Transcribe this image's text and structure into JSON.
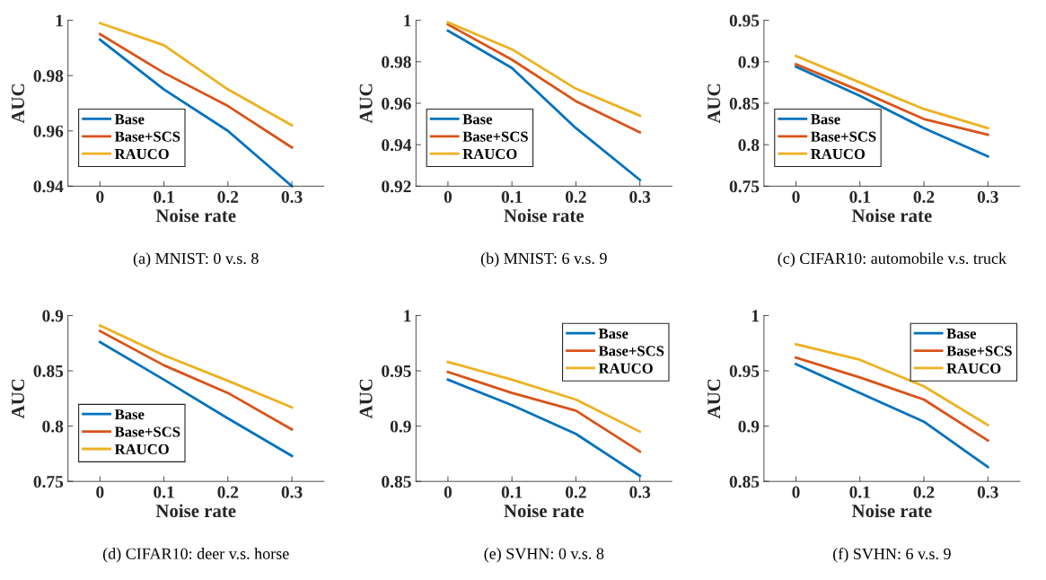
{
  "chart_data": [
    {
      "type": "line",
      "title": "(a) MNIST: 0 v.s. 8",
      "xlabel": "Noise rate",
      "ylabel": "AUC",
      "x": [
        0,
        0.1,
        0.2,
        0.3
      ],
      "xlim": [
        -0.05,
        0.35
      ],
      "xticks": [
        0,
        0.1,
        0.2,
        0.3
      ],
      "ylim": [
        0.94,
        1
      ],
      "yticks": [
        0.94,
        0.96,
        0.98,
        1
      ],
      "legend": "bottom left",
      "grid": false,
      "series": [
        {
          "name": "Base",
          "color": "#0072bd",
          "values": [
            0.993,
            0.975,
            0.96,
            0.94
          ]
        },
        {
          "name": "Base+SCS",
          "color": "#d95319",
          "values": [
            0.995,
            0.981,
            0.969,
            0.954
          ]
        },
        {
          "name": "RAUCO",
          "color": "#edb120",
          "values": [
            0.999,
            0.991,
            0.975,
            0.962
          ]
        }
      ]
    },
    {
      "type": "line",
      "title": "(b) MNIST: 6 v.s. 9",
      "xlabel": "Noise rate",
      "ylabel": "AUC",
      "x": [
        0,
        0.1,
        0.2,
        0.3
      ],
      "xlim": [
        -0.05,
        0.35
      ],
      "xticks": [
        0,
        0.1,
        0.2,
        0.3
      ],
      "ylim": [
        0.92,
        1
      ],
      "yticks": [
        0.92,
        0.94,
        0.96,
        0.98,
        1
      ],
      "legend": "bottom left",
      "grid": false,
      "series": [
        {
          "name": "Base",
          "color": "#0072bd",
          "values": [
            0.995,
            0.977,
            0.948,
            0.923
          ]
        },
        {
          "name": "Base+SCS",
          "color": "#d95319",
          "values": [
            0.998,
            0.981,
            0.961,
            0.946
          ]
        },
        {
          "name": "RAUCO",
          "color": "#edb120",
          "values": [
            0.999,
            0.986,
            0.967,
            0.954
          ]
        }
      ]
    },
    {
      "type": "line",
      "title": "(c) CIFAR10: automobile v.s. truck",
      "xlabel": "Noise rate",
      "ylabel": "AUC",
      "x": [
        0,
        0.1,
        0.2,
        0.3
      ],
      "xlim": [
        -0.05,
        0.35
      ],
      "xticks": [
        0,
        0.1,
        0.2,
        0.3
      ],
      "ylim": [
        0.75,
        0.95
      ],
      "yticks": [
        0.75,
        0.8,
        0.85,
        0.9,
        0.95
      ],
      "legend": "bottom left",
      "grid": false,
      "series": [
        {
          "name": "Base",
          "color": "#0072bd",
          "values": [
            0.894,
            0.859,
            0.82,
            0.786
          ]
        },
        {
          "name": "Base+SCS",
          "color": "#d95319",
          "values": [
            0.897,
            0.865,
            0.831,
            0.812
          ]
        },
        {
          "name": "RAUCO",
          "color": "#edb120",
          "values": [
            0.907,
            0.875,
            0.843,
            0.82
          ]
        }
      ]
    },
    {
      "type": "line",
      "title": "(d) CIFAR10: deer v.s. horse",
      "xlabel": "Noise rate",
      "ylabel": "AUC",
      "x": [
        0,
        0.1,
        0.2,
        0.3
      ],
      "xlim": [
        -0.05,
        0.35
      ],
      "xticks": [
        0,
        0.1,
        0.2,
        0.3
      ],
      "ylim": [
        0.75,
        0.9
      ],
      "yticks": [
        0.75,
        0.8,
        0.85,
        0.9
      ],
      "legend": "bottom left",
      "grid": false,
      "series": [
        {
          "name": "Base",
          "color": "#0072bd",
          "values": [
            0.876,
            0.842,
            0.807,
            0.773
          ]
        },
        {
          "name": "Base+SCS",
          "color": "#d95319",
          "values": [
            0.886,
            0.855,
            0.83,
            0.797
          ]
        },
        {
          "name": "RAUCO",
          "color": "#edb120",
          "values": [
            0.891,
            0.864,
            0.841,
            0.817
          ]
        }
      ]
    },
    {
      "type": "line",
      "title": "(e) SVHN: 0 v.s. 8",
      "xlabel": "Noise rate",
      "ylabel": "AUC",
      "x": [
        0,
        0.1,
        0.2,
        0.3
      ],
      "xlim": [
        -0.05,
        0.35
      ],
      "xticks": [
        0,
        0.1,
        0.2,
        0.3
      ],
      "ylim": [
        0.85,
        1
      ],
      "yticks": [
        0.85,
        0.9,
        0.95,
        1
      ],
      "legend": "top right",
      "grid": false,
      "series": [
        {
          "name": "Base",
          "color": "#0072bd",
          "values": [
            0.942,
            0.919,
            0.893,
            0.855
          ]
        },
        {
          "name": "Base+SCS",
          "color": "#d95319",
          "values": [
            0.949,
            0.93,
            0.914,
            0.877
          ]
        },
        {
          "name": "RAUCO",
          "color": "#edb120",
          "values": [
            0.958,
            0.942,
            0.924,
            0.895
          ]
        }
      ]
    },
    {
      "type": "line",
      "title": "(f) SVHN: 6 v.s. 9",
      "xlabel": "Noise rate",
      "ylabel": "AUC",
      "x": [
        0,
        0.1,
        0.2,
        0.3
      ],
      "xlim": [
        -0.05,
        0.35
      ],
      "xticks": [
        0,
        0.1,
        0.2,
        0.3
      ],
      "ylim": [
        0.85,
        1
      ],
      "yticks": [
        0.85,
        0.9,
        0.95,
        1
      ],
      "legend": "top right",
      "grid": false,
      "series": [
        {
          "name": "Base",
          "color": "#0072bd",
          "values": [
            0.956,
            0.93,
            0.904,
            0.863
          ]
        },
        {
          "name": "Base+SCS",
          "color": "#d95319",
          "values": [
            0.962,
            0.944,
            0.924,
            0.887
          ]
        },
        {
          "name": "RAUCO",
          "color": "#edb120",
          "values": [
            0.974,
            0.96,
            0.936,
            0.901
          ]
        }
      ]
    }
  ]
}
